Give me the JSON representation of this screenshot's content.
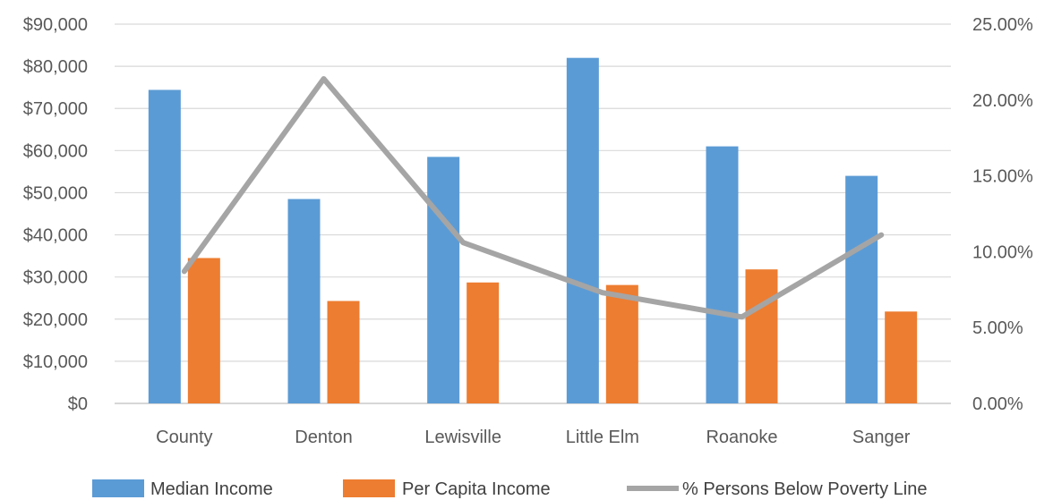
{
  "chart_data": {
    "type": "bar",
    "categories": [
      "County",
      "Denton",
      "Lewisville",
      "Little Elm",
      "Roanoke",
      "Sanger"
    ],
    "series": [
      {
        "name": "Median Income",
        "type": "bar",
        "axis": "left",
        "color": "#5B9BD5",
        "values": [
          74400,
          48500,
          58500,
          82000,
          61000,
          54000
        ]
      },
      {
        "name": "Per Capita Income",
        "type": "bar",
        "axis": "left",
        "color": "#ED7D31",
        "values": [
          34500,
          24300,
          28700,
          28100,
          31800,
          21800
        ]
      },
      {
        "name": "% Persons Below Poverty Line",
        "type": "line",
        "axis": "right",
        "color": "#A5A5A5",
        "values": [
          0.087,
          0.214,
          0.106,
          0.073,
          0.057,
          0.111
        ]
      }
    ],
    "y_left": {
      "min": 0,
      "max": 90000,
      "ticks": [
        "$0",
        "$10,000",
        "$20,000",
        "$30,000",
        "$40,000",
        "$50,000",
        "$60,000",
        "$70,000",
        "$80,000",
        "$90,000"
      ]
    },
    "y_right": {
      "min": 0,
      "max": 0.25,
      "ticks": [
        "0.00%",
        "5.00%",
        "10.00%",
        "15.00%",
        "20.00%",
        "25.00%"
      ]
    },
    "grid": true,
    "legend_position": "bottom",
    "title": "",
    "xlabel": "",
    "ylabel": ""
  }
}
